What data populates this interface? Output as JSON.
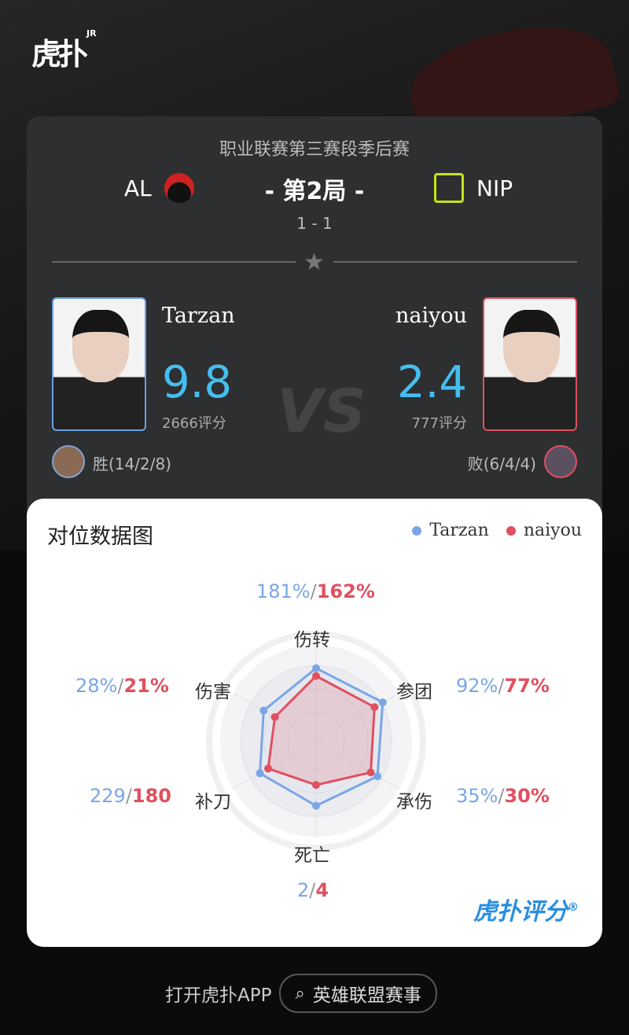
{
  "brand_logo": "虎扑",
  "brand_logo_sup": "JR",
  "match": {
    "league": "职业联赛第三赛段季后赛",
    "home_team": "AL",
    "away_team": "NIP",
    "game_label": "- 第2局 -",
    "series_score": "1 - 1"
  },
  "players": [
    {
      "name": "Tarzan",
      "rating": "9.8",
      "points": "2666评分",
      "result": "胜(14/2/8)",
      "border_color": "#6aa0e8"
    },
    {
      "name": "naiyou",
      "rating": "2.4",
      "points": "777评分",
      "result": "败(6/4/4)",
      "border_color": "#e05060"
    }
  ],
  "vs_label": "VS",
  "chart_data": {
    "type": "radar",
    "title": "对位数据图",
    "legend": [
      {
        "name": "Tarzan",
        "color": "#7aa6e6"
      },
      {
        "name": "naiyou",
        "color": "#e05060"
      }
    ],
    "legend_placement": "top-right",
    "axes": [
      "伤转",
      "参团",
      "承伤",
      "死亡",
      "补刀",
      "伤害"
    ],
    "value_labels": [
      {
        "a": "181%",
        "b": "162%"
      },
      {
        "a": "92%",
        "b": "77%"
      },
      {
        "a": "35%",
        "b": "30%"
      },
      {
        "a": "2",
        "b": "4"
      },
      {
        "a": "229",
        "b": "180"
      },
      {
        "a": "28%",
        "b": "21%"
      }
    ],
    "series": [
      {
        "name": "Tarzan",
        "color": "#7aa6e6",
        "levels": [
          0.84,
          0.89,
          0.82,
          0.75,
          0.75,
          0.7
        ]
      },
      {
        "name": "naiyou",
        "color": "#e05060",
        "levels": [
          0.75,
          0.78,
          0.73,
          0.51,
          0.64,
          0.55
        ]
      }
    ]
  },
  "watermark": "虎扑评分",
  "footer": {
    "open_app": "打开虎扑APP",
    "search_label": "英雄联盟赛事"
  }
}
